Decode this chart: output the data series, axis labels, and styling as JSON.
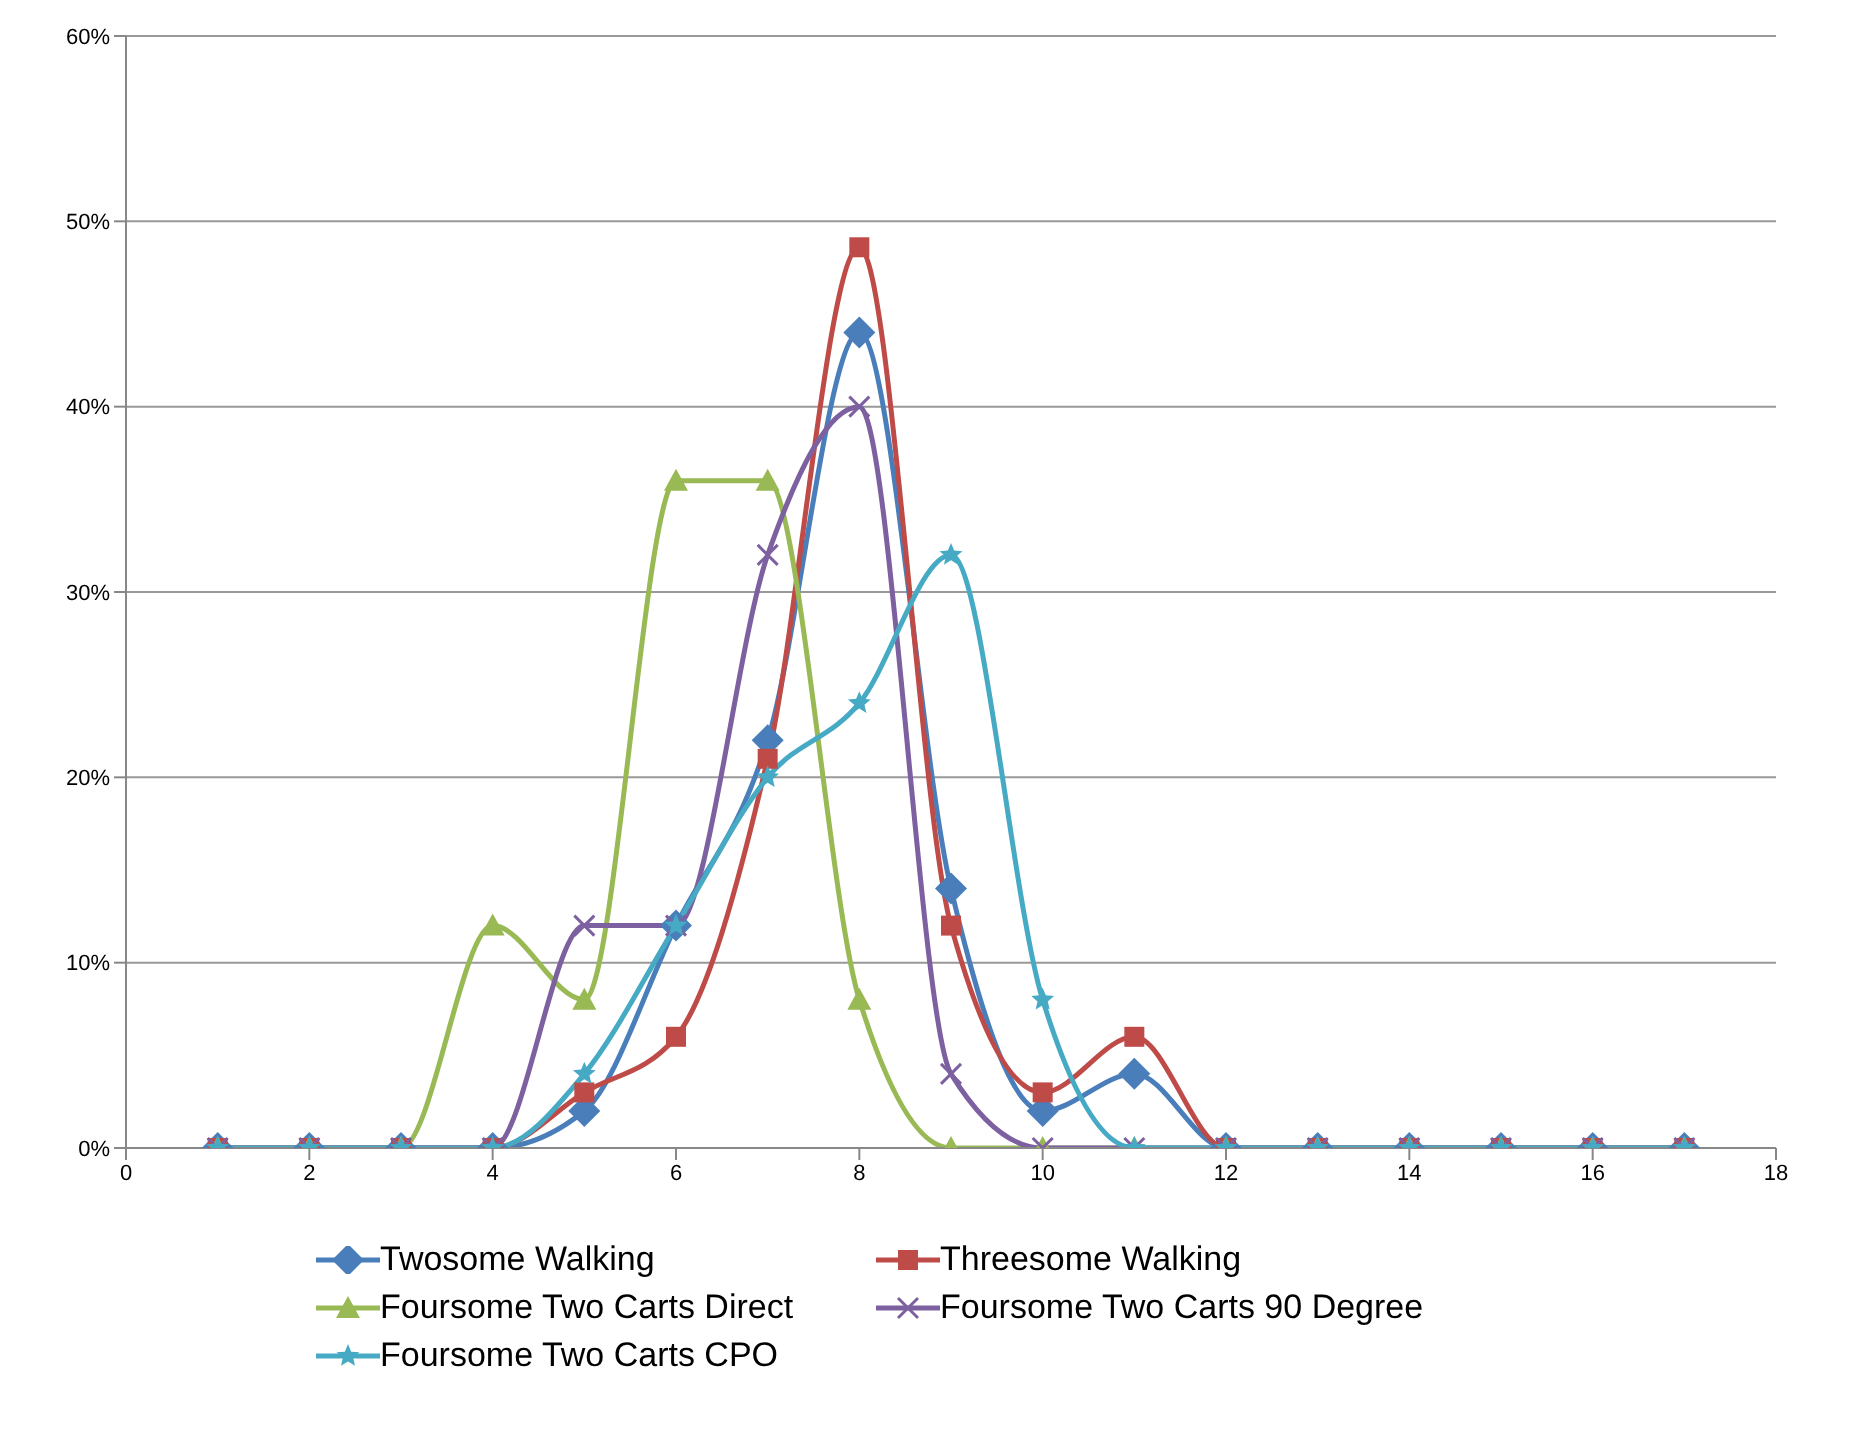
{
  "chart_data": {
    "type": "line",
    "x": [
      1,
      2,
      3,
      4,
      5,
      6,
      7,
      8,
      9,
      10,
      11,
      12,
      13,
      14,
      15,
      16,
      17
    ],
    "xlim": [
      0,
      18
    ],
    "xticks": [
      0,
      2,
      4,
      6,
      8,
      10,
      12,
      14,
      16,
      18
    ],
    "ylim": [
      0,
      60
    ],
    "yticks": [
      {
        "value": 0,
        "label": "0%"
      },
      {
        "value": 10,
        "label": "10%"
      },
      {
        "value": 20,
        "label": "20%"
      },
      {
        "value": 30,
        "label": "30%"
      },
      {
        "value": 40,
        "label": "40%"
      },
      {
        "value": 50,
        "label": "50%"
      },
      {
        "value": 60,
        "label": "60%"
      }
    ],
    "grid": "y",
    "legend": "bottom",
    "series": [
      {
        "name": "Twosome Walking",
        "color": "#4a7ebb",
        "marker": "diamond",
        "values": [
          0,
          0,
          0,
          0,
          2,
          12,
          22,
          44,
          14,
          2,
          4,
          0,
          0,
          0,
          0,
          0,
          0
        ]
      },
      {
        "name": "Threesome Walking",
        "color": "#be4b48",
        "marker": "square",
        "values": [
          0,
          0,
          0,
          0,
          3,
          6,
          21,
          48.6,
          12,
          3,
          6,
          0,
          0,
          0,
          0,
          0,
          0
        ]
      },
      {
        "name": "Foursome Two Carts Direct",
        "color": "#98b954",
        "marker": "triangle",
        "values": [
          0,
          0,
          0,
          12,
          8,
          36,
          36,
          8,
          0,
          0,
          0,
          0,
          0,
          0,
          0,
          0,
          0
        ]
      },
      {
        "name": "Foursome Two Carts 90 Degree",
        "color": "#7d60a0",
        "marker": "cross",
        "values": [
          0,
          0,
          0,
          0,
          12,
          12,
          32,
          40,
          4,
          0,
          0,
          0,
          0,
          0,
          0,
          0,
          0
        ]
      },
      {
        "name": "Foursome Two Carts CPO",
        "color": "#46aac5",
        "marker": "star",
        "values": [
          0,
          0,
          0,
          0,
          4,
          12,
          20,
          24,
          32,
          8,
          0,
          0,
          0,
          0,
          0,
          0,
          0
        ]
      }
    ]
  }
}
